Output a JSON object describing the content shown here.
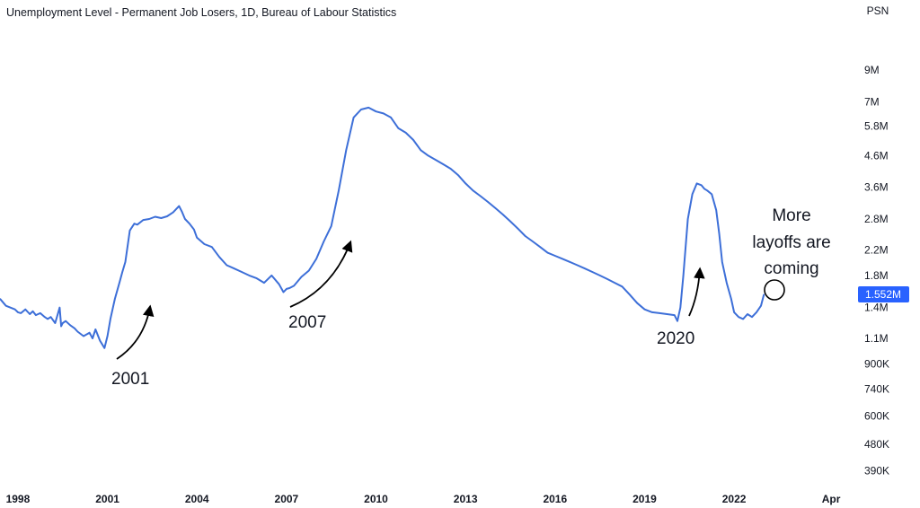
{
  "chart_data": {
    "type": "line",
    "title": "Unemployment Level - Permanent Job Losers, 1D, Bureau of Labour Statistics",
    "y_scale": "log",
    "y_axis_label": "PSN",
    "y_ticks": [
      {
        "label": "9M",
        "value": 9000000
      },
      {
        "label": "7M",
        "value": 7000000
      },
      {
        "label": "5.8M",
        "value": 5800000
      },
      {
        "label": "4.6M",
        "value": 4600000
      },
      {
        "label": "3.6M",
        "value": 3600000
      },
      {
        "label": "2.8M",
        "value": 2800000
      },
      {
        "label": "2.2M",
        "value": 2200000
      },
      {
        "label": "1.8M",
        "value": 1800000
      },
      {
        "label": "1.4M",
        "value": 1400000
      },
      {
        "label": "1.1M",
        "value": 1100000
      },
      {
        "label": "900K",
        "value": 900000
      },
      {
        "label": "740K",
        "value": 740000
      },
      {
        "label": "600K",
        "value": 600000
      },
      {
        "label": "480K",
        "value": 480000
      },
      {
        "label": "390K",
        "value": 390000
      }
    ],
    "x_ticks": [
      {
        "label": "1998",
        "value": 1998.0
      },
      {
        "label": "2001",
        "value": 2001.0
      },
      {
        "label": "2004",
        "value": 2004.0
      },
      {
        "label": "2007",
        "value": 2007.0
      },
      {
        "label": "2010",
        "value": 2010.0
      },
      {
        "label": "2013",
        "value": 2013.0
      },
      {
        "label": "2016",
        "value": 2016.0
      },
      {
        "label": "2019",
        "value": 2019.0
      },
      {
        "label": "2022",
        "value": 2022.0
      },
      {
        "label": "Apr",
        "value": 2025.25
      }
    ],
    "x_range": [
      1997.4,
      2025.7
    ],
    "y_range": [
      360000,
      11100000
    ],
    "last_value_label": "1.552M",
    "line_color": "#3d6fd8",
    "label_color": "#2962ff",
    "series": [
      {
        "x": [
          1997.4,
          1997.6,
          1997.75,
          1997.9,
          1998.0,
          1998.1,
          1998.25,
          1998.4,
          1998.5,
          1998.6,
          1998.75,
          1998.9,
          1999.0,
          1999.1,
          1999.25,
          1999.4,
          1999.45,
          1999.5,
          1999.6,
          1999.75,
          1999.9,
          2000.0,
          2000.2,
          2000.4,
          2000.5,
          2000.6,
          2000.75,
          2000.9,
          2001.0,
          2001.1,
          2001.25,
          2001.4,
          2001.5,
          2001.6,
          2001.75,
          2001.9,
          2002.0,
          2002.2,
          2002.4,
          2002.6,
          2002.8,
          2003.0,
          2003.2,
          2003.4,
          2003.5,
          2003.6,
          2003.75,
          2003.9,
          2004.0,
          2004.25,
          2004.5,
          2004.75,
          2005.0,
          2005.25,
          2005.5,
          2005.75,
          2006.0,
          2006.25,
          2006.5,
          2006.75,
          2006.9,
          2007.0,
          2007.1,
          2007.25,
          2007.5,
          2007.75,
          2008.0,
          2008.25,
          2008.5,
          2008.75,
          2009.0,
          2009.25,
          2009.5,
          2009.75,
          2010.0,
          2010.25,
          2010.5,
          2010.75,
          2011.0,
          2011.25,
          2011.5,
          2011.75,
          2012.0,
          2012.25,
          2012.5,
          2012.75,
          2013.0,
          2013.25,
          2013.5,
          2013.75,
          2014.0,
          2014.25,
          2014.5,
          2014.75,
          2015.0,
          2015.25,
          2015.5,
          2015.75,
          2016.0,
          2016.25,
          2016.5,
          2016.75,
          2017.0,
          2017.25,
          2017.5,
          2017.75,
          2018.0,
          2018.25,
          2018.5,
          2018.75,
          2019.0,
          2019.25,
          2019.5,
          2019.75,
          2020.0,
          2020.1,
          2020.2,
          2020.3,
          2020.45,
          2020.6,
          2020.75,
          2020.9,
          2021.0,
          2021.1,
          2021.25,
          2021.4,
          2021.5,
          2021.6,
          2021.75,
          2021.9,
          2022.0,
          2022.15,
          2022.3,
          2022.45,
          2022.6,
          2022.75,
          2022.9,
          2023.0
        ],
        "y": [
          1500000,
          1420000,
          1400000,
          1380000,
          1350000,
          1340000,
          1380000,
          1330000,
          1360000,
          1320000,
          1340000,
          1300000,
          1280000,
          1300000,
          1240000,
          1400000,
          1210000,
          1240000,
          1260000,
          1220000,
          1190000,
          1160000,
          1120000,
          1150000,
          1100000,
          1180000,
          1080000,
          1020000,
          1120000,
          1280000,
          1500000,
          1700000,
          1850000,
          2000000,
          2560000,
          2700000,
          2680000,
          2780000,
          2800000,
          2850000,
          2820000,
          2860000,
          2950000,
          3100000,
          2960000,
          2800000,
          2700000,
          2580000,
          2420000,
          2300000,
          2250000,
          2080000,
          1950000,
          1900000,
          1850000,
          1800000,
          1760000,
          1700000,
          1800000,
          1680000,
          1580000,
          1620000,
          1630000,
          1660000,
          1780000,
          1870000,
          2050000,
          2350000,
          2650000,
          3500000,
          4800000,
          6200000,
          6600000,
          6700000,
          6500000,
          6400000,
          6200000,
          5700000,
          5500000,
          5200000,
          4800000,
          4600000,
          4450000,
          4300000,
          4150000,
          3950000,
          3700000,
          3500000,
          3350000,
          3200000,
          3050000,
          2900000,
          2750000,
          2600000,
          2450000,
          2350000,
          2250000,
          2150000,
          2100000,
          2050000,
          2000000,
          1950000,
          1900000,
          1850000,
          1800000,
          1750000,
          1700000,
          1650000,
          1550000,
          1450000,
          1380000,
          1350000,
          1340000,
          1330000,
          1320000,
          1260000,
          1400000,
          1800000,
          2800000,
          3400000,
          3700000,
          3650000,
          3550000,
          3500000,
          3400000,
          3000000,
          2500000,
          2000000,
          1700000,
          1500000,
          1350000,
          1300000,
          1280000,
          1330000,
          1300000,
          1350000,
          1420000,
          1552000
        ]
      }
    ],
    "annotations": [
      {
        "text": "2001"
      },
      {
        "text": "2007"
      },
      {
        "text": "2020"
      },
      {
        "text": "More"
      },
      {
        "text": "layoffs are"
      },
      {
        "text": "coming"
      }
    ]
  }
}
